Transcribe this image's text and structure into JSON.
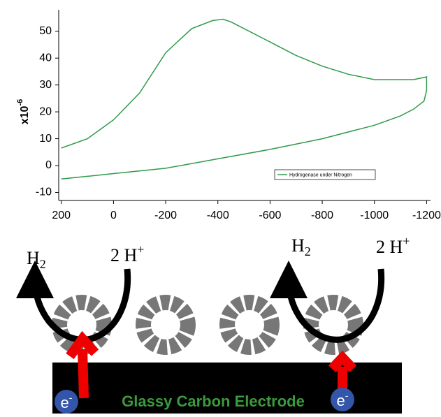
{
  "chart_data": {
    "type": "line",
    "y_label": "x10",
    "y_label_exponent": "-6",
    "series": [
      {
        "name": "Hydrogenase under Nitrogen",
        "color": "#2e9b4a",
        "x": [
          200,
          100,
          0,
          -200,
          -400,
          -600,
          -800,
          -1000,
          -1100,
          -1150,
          -1190,
          -1200,
          -1200,
          -1150,
          -1100,
          -1000,
          -900,
          -800,
          -700,
          -600,
          -500,
          -450,
          -420,
          -380,
          -300,
          -200,
          -100,
          -50,
          0,
          100,
          200
        ],
        "values": [
          -5,
          -4,
          -3,
          -1,
          2.5,
          6,
          10,
          15,
          18.5,
          21,
          24,
          28,
          33,
          32,
          32,
          32,
          34,
          37,
          41,
          46,
          51,
          53.5,
          54.5,
          54,
          51,
          42,
          27,
          22,
          17,
          10,
          6.5
        ]
      }
    ],
    "xlim": [
      210,
      -1215
    ],
    "xticks": [
      200,
      0,
      -200,
      -400,
      -600,
      -800,
      -1000,
      -1200
    ],
    "ylim": [
      -13,
      58
    ],
    "yticks": [
      -10,
      0,
      10,
      20,
      30,
      40,
      50
    ],
    "legend": "lower right"
  },
  "diagram": {
    "products": [
      {
        "base": "H",
        "sub": "2"
      },
      {
        "base": "H",
        "sub": "2"
      }
    ],
    "reactants": [
      {
        "base": "2 H",
        "sup": "+"
      },
      {
        "base": "2 H",
        "sup": "+"
      }
    ],
    "electrode": "Glassy Carbon Electrode",
    "electrons": [
      {
        "base": "e",
        "sup": "-"
      },
      {
        "base": "e",
        "sup": "-"
      }
    ]
  }
}
